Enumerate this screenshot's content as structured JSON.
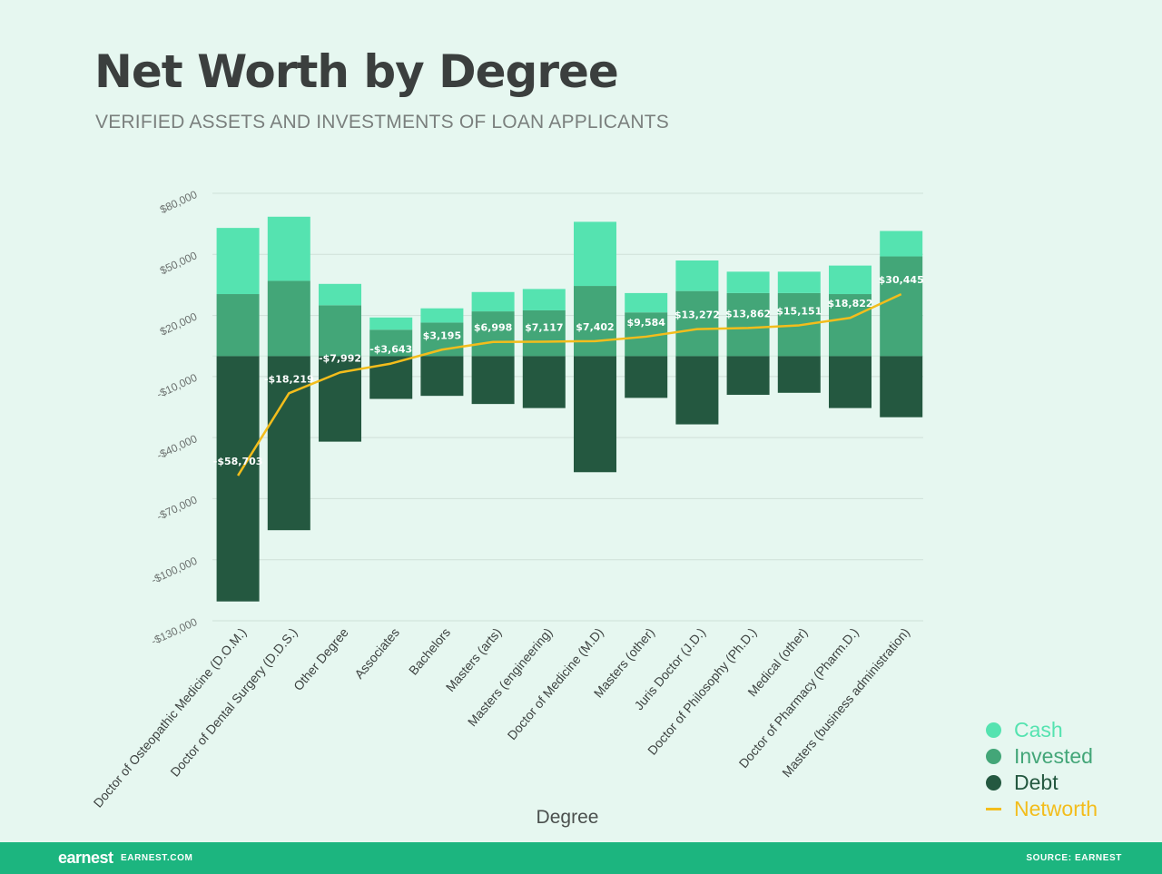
{
  "header": {
    "title": "Net Worth by Degree",
    "subtitle": "VERIFIED ASSETS AND INVESTMENTS OF LOAN APPLICANTS"
  },
  "chart_data": {
    "type": "bar",
    "stacked": true,
    "title": "Net Worth by Degree",
    "subtitle": "VERIFIED ASSETS AND INVESTMENTS OF LOAN APPLICANTS",
    "xlabel": "Degree",
    "ylabel": "",
    "ylim": [
      -130000,
      80000
    ],
    "yticks": [
      80000,
      50000,
      20000,
      -10000,
      -40000,
      -70000,
      -100000,
      -130000
    ],
    "ytick_labels": [
      "$80,000",
      "$50,000",
      "$20,000",
      "-$10,000",
      "-$40,000",
      "-$70,000",
      "-$100,000",
      "-$130,000"
    ],
    "grid": true,
    "legend_position": "bottom-right",
    "categories": [
      "Doctor of Osteopathic Medicine (D.O.M.)",
      "Doctor of Dental Surgery (D.D.S.)",
      "Other Degree",
      "Associates",
      "Bachelors",
      "Masters (arts)",
      "Masters (engineering)",
      "Doctor of Medicine (M.D)",
      "Masters (other)",
      "Juris Doctor (J.D.)",
      "Doctor of Philosophy (Ph.D.)",
      "Medical (other)",
      "Doctor of Pharmacy (Pharm.D.)",
      "Masters (business administration)"
    ],
    "series": [
      {
        "name": "Cash",
        "color": "#55e3b0",
        "kind": "bar",
        "values": [
          32500,
          31500,
          10500,
          6000,
          7000,
          9500,
          10500,
          31500,
          9500,
          15000,
          10500,
          10500,
          14000,
          12500
        ]
      },
      {
        "name": "Invested",
        "color": "#43a678",
        "kind": "bar",
        "values": [
          30500,
          37000,
          25000,
          13000,
          16500,
          22000,
          22500,
          34500,
          21500,
          32000,
          31000,
          31000,
          30500,
          49000
        ]
      },
      {
        "name": "Debt",
        "color": "#245840",
        "kind": "bar",
        "values": [
          -120500,
          -85500,
          -42000,
          -21000,
          -19500,
          -23500,
          -25500,
          -57000,
          -20500,
          -33500,
          -19000,
          -18000,
          -25500,
          -30000
        ]
      },
      {
        "name": "Networth",
        "color": "#f3bd1c",
        "kind": "line",
        "values": [
          -58703,
          -18219,
          -7992,
          -3643,
          3195,
          6998,
          7117,
          7402,
          9584,
          13272,
          13862,
          15151,
          18822,
          30445
        ],
        "labels": [
          "-$58,703",
          "-$18,219",
          "-$7,992",
          "-$3,643",
          "$3,195",
          "$6,998",
          "$7,117",
          "$7,402",
          "$9,584",
          "$13,272",
          "$13,862",
          "$15,151",
          "$18,822",
          "$30,445"
        ]
      }
    ]
  },
  "legend": {
    "items": [
      {
        "label": "Cash",
        "color": "#55e3b0"
      },
      {
        "label": "Invested",
        "color": "#43a678"
      },
      {
        "label": "Debt",
        "color": "#245840"
      },
      {
        "label": "Networth",
        "color": "#f3bd1c"
      }
    ]
  },
  "footer": {
    "logo": "earnest",
    "site": "EARNEST.COM",
    "source": "SOURCE: EARNEST"
  }
}
